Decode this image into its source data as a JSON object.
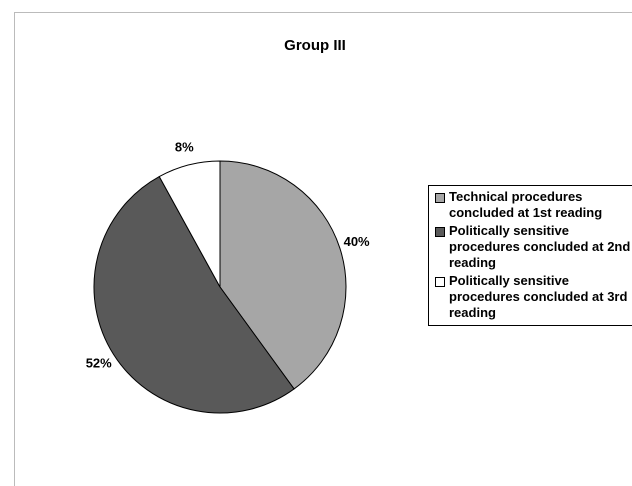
{
  "chart_data": {
    "type": "pie",
    "title": "Group III",
    "categories": [
      "Technical procedures concluded at 1st reading",
      "Politically sensitive procedures concluded at 2nd reading",
      "Politically sensitive procedures concluded at 3rd reading"
    ],
    "values": [
      40,
      52,
      8
    ],
    "value_labels": [
      "40%",
      "52%",
      "8%"
    ],
    "colors": [
      "#a6a6a6",
      "#595959",
      "#ffffff"
    ],
    "legend": "right"
  }
}
